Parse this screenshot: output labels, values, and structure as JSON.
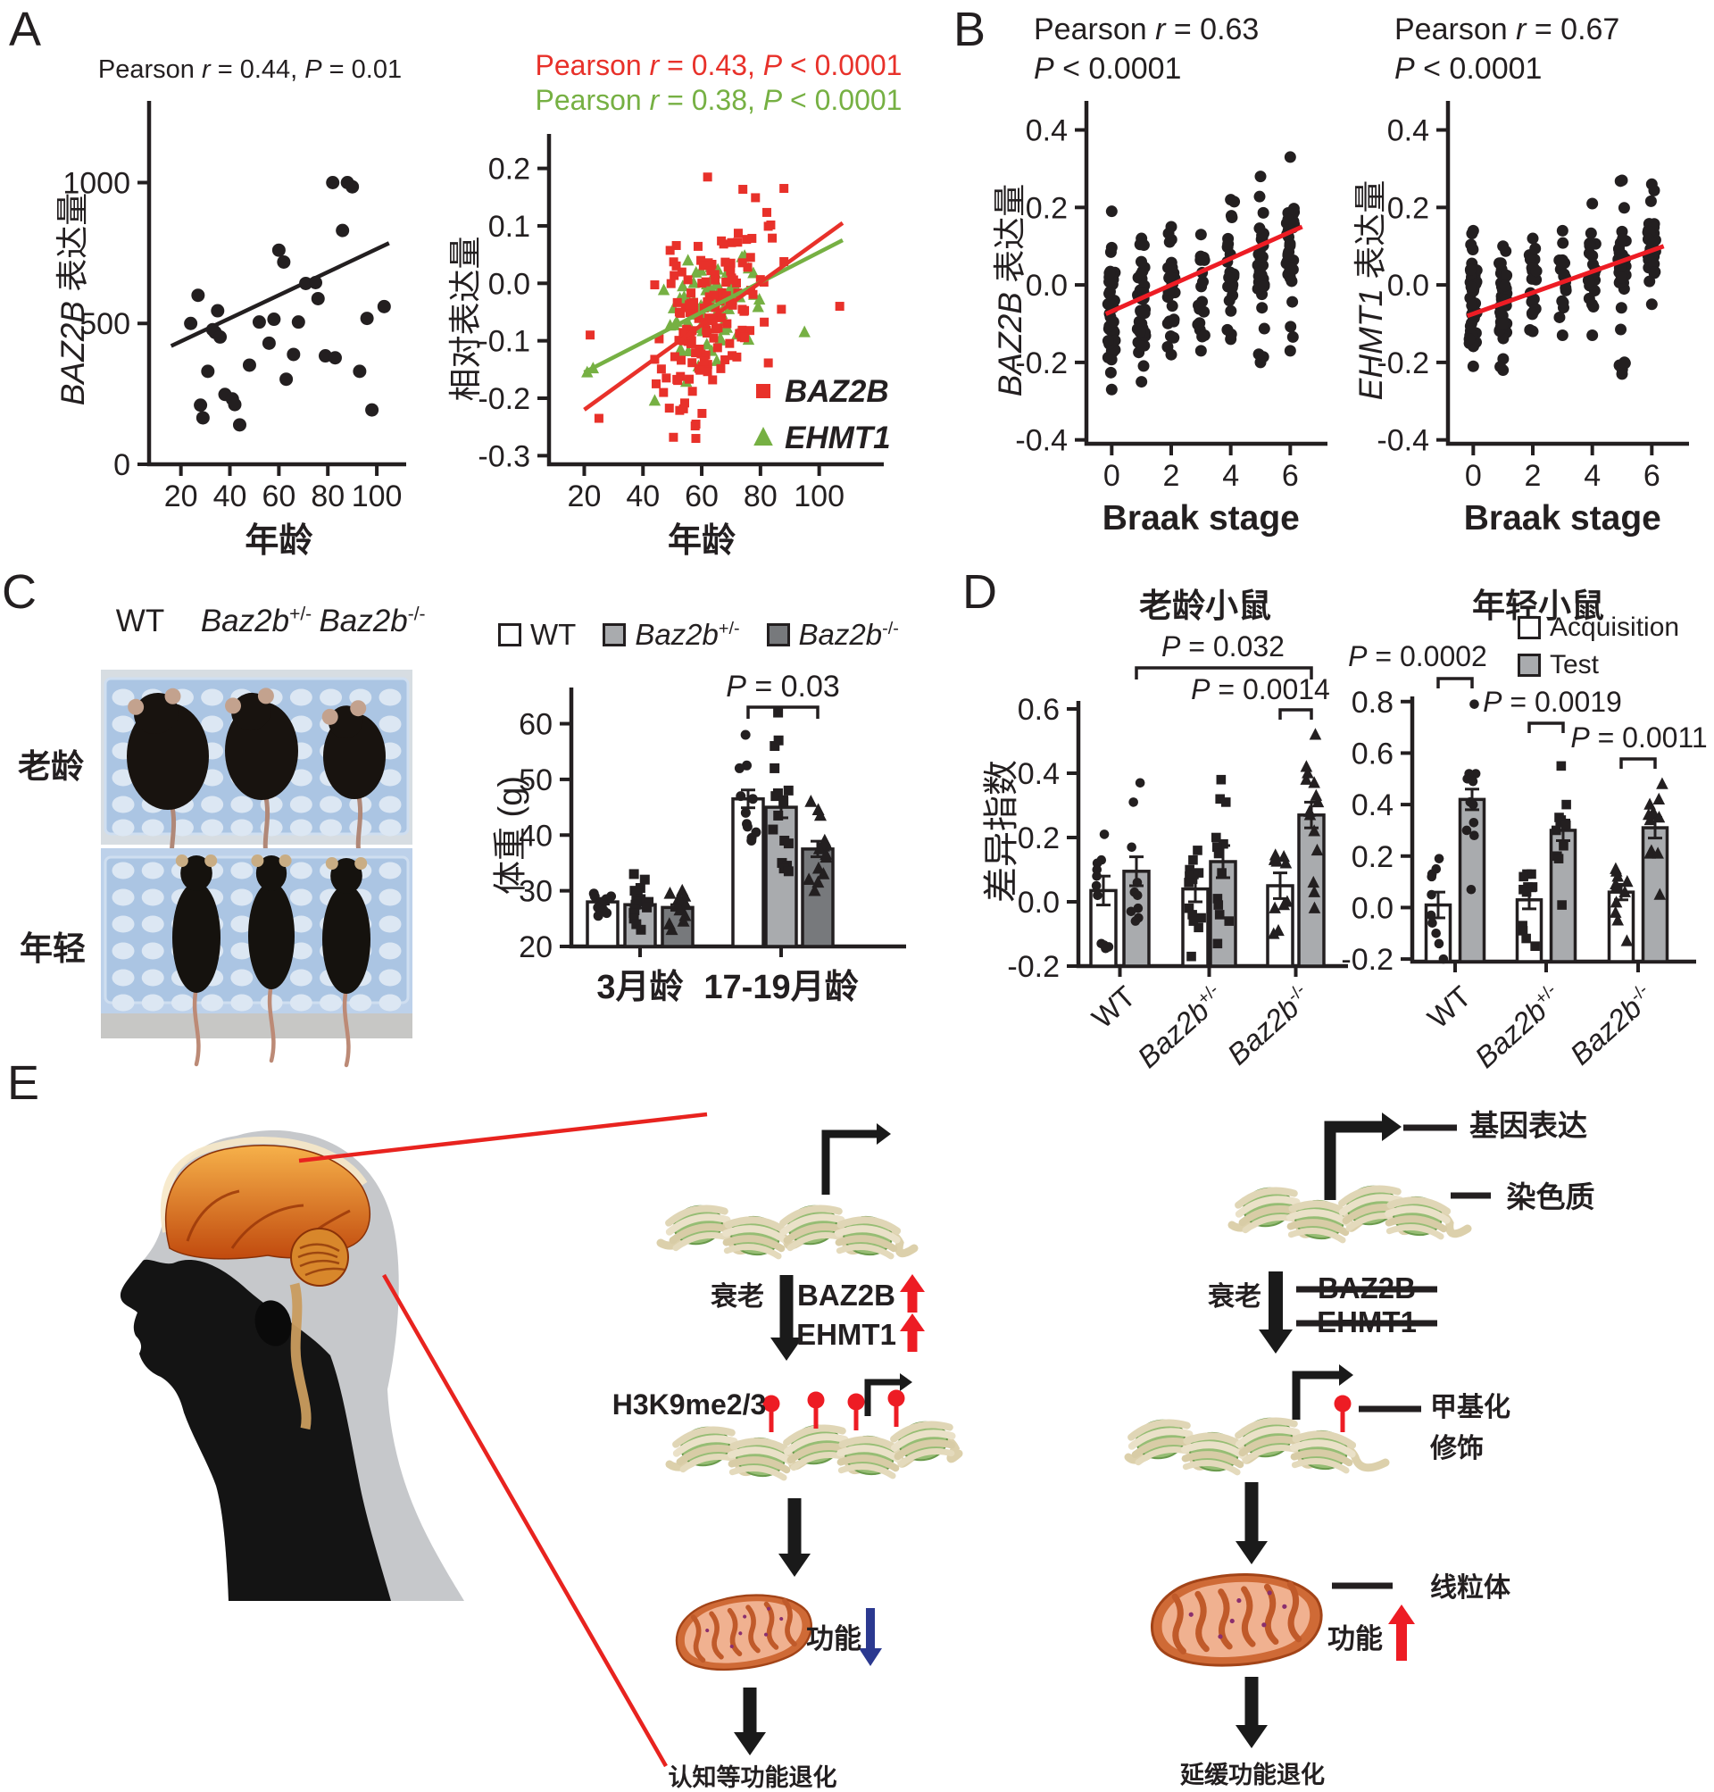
{
  "colors": {
    "ink": "#231f20",
    "red": "#e8312a",
    "line_red": "#ed1c24",
    "green": "#76b043",
    "blue": "#2b3990",
    "bar_white": "#ffffff",
    "bar_light": "#a9abae",
    "bar_dark": "#77797c"
  },
  "panel_a": {
    "label": "A",
    "left": {
      "title": "Pearson |r| = 0.44, |P| = 0.01",
      "ylabel": {
        "gene": "BAZ2B",
        "cjk": " 表达量"
      },
      "xlabel": "年龄",
      "yticks": [
        [
          0,
          "0"
        ],
        [
          500,
          "500"
        ],
        [
          1000,
          "1000"
        ]
      ],
      "xticks": [
        [
          20,
          "20"
        ],
        [
          40,
          "40"
        ],
        [
          60,
          "60"
        ],
        [
          80,
          "80"
        ],
        [
          100,
          "100"
        ]
      ],
      "points": [
        [
          24,
          500
        ],
        [
          27,
          600
        ],
        [
          28,
          210
        ],
        [
          29,
          165
        ],
        [
          31,
          330
        ],
        [
          33,
          478
        ],
        [
          34,
          468
        ],
        [
          35,
          545
        ],
        [
          36,
          452
        ],
        [
          38,
          248
        ],
        [
          41,
          232
        ],
        [
          42,
          212
        ],
        [
          44,
          140
        ],
        [
          48,
          352
        ],
        [
          52,
          505
        ],
        [
          56,
          430
        ],
        [
          58,
          515
        ],
        [
          60,
          760
        ],
        [
          62,
          718
        ],
        [
          63,
          302
        ],
        [
          66,
          390
        ],
        [
          68,
          505
        ],
        [
          71,
          642
        ],
        [
          75,
          645
        ],
        [
          76,
          588
        ],
        [
          79,
          385
        ],
        [
          82,
          1000
        ],
        [
          83,
          378
        ],
        [
          86,
          830
        ],
        [
          88,
          1000
        ],
        [
          90,
          985
        ],
        [
          93,
          330
        ],
        [
          96,
          518
        ],
        [
          98,
          193
        ],
        [
          103,
          560
        ]
      ],
      "trend": [
        [
          16,
          420
        ],
        [
          105,
          785
        ]
      ]
    },
    "right": {
      "title_red": "Pearson |r| = 0.43, |P| < 0.0001",
      "title_green": "Pearson |r| = 0.38, |P| < 0.0001",
      "ylabel": "相对表达量",
      "xlabel": "年龄",
      "yticks": [
        [
          0.2,
          "0.2"
        ],
        [
          0.1,
          "0.1"
        ],
        [
          0,
          "0.0"
        ],
        [
          -0.1,
          "-0.1"
        ],
        [
          -0.2,
          "-0.2"
        ],
        [
          -0.3,
          "-0.3"
        ]
      ],
      "xticks": [
        [
          20,
          "20"
        ],
        [
          40,
          "40"
        ],
        [
          60,
          "60"
        ],
        [
          80,
          "80"
        ],
        [
          100,
          "100"
        ]
      ],
      "legend": [
        {
          "label": "BAZ2B",
          "marker": "square",
          "color": "#e8312a"
        },
        {
          "label": "EHMT1",
          "marker": "triangle",
          "color": "#76b043"
        }
      ],
      "series": [
        {
          "name": "BAZ2B",
          "marker": "square",
          "color": "#e8312a",
          "n": 140,
          "x_center": 63,
          "x_spread": 9,
          "y_noise": 0.075,
          "trend": [
            [
              20,
              -0.22
            ],
            [
              108,
              0.105
            ]
          ],
          "outliers": [
            [
              22,
              -0.09
            ],
            [
              25,
              -0.235
            ],
            [
              47,
              -0.19
            ],
            [
              58,
              -0.27
            ],
            [
              62,
              0.185
            ],
            [
              107,
              -0.04
            ]
          ]
        },
        {
          "name": "EHMT1",
          "marker": "triangle",
          "color": "#76b043",
          "n": 80,
          "x_center": 62,
          "x_spread": 8,
          "y_noise": 0.05,
          "trend": [
            [
              20,
              -0.155
            ],
            [
              108,
              0.075
            ]
          ],
          "outliers": [
            [
              21,
              -0.155
            ],
            [
              23,
              -0.148
            ],
            [
              95,
              -0.085
            ]
          ]
        }
      ]
    }
  },
  "panel_b": {
    "label": "B",
    "left": {
      "title1": "Pearson |r| = 0.63",
      "title2": "|P| < 0.0001",
      "ylabel": {
        "gene": "BAZ2B",
        "cjk": " 表达量"
      },
      "xlabel": "Braak stage",
      "yticks": [
        [
          0.4,
          "0.4"
        ],
        [
          0.2,
          "0.2"
        ],
        [
          0,
          "0.0"
        ],
        [
          -0.2,
          "-0.2"
        ],
        [
          -0.4,
          "-0.4"
        ]
      ],
      "xticks": [
        [
          0,
          "0"
        ],
        [
          2,
          "2"
        ],
        [
          4,
          "4"
        ],
        [
          6,
          "6"
        ]
      ],
      "strips": [
        {
          "x": 0,
          "n": 38,
          "lo": -0.27,
          "hi": 0.19,
          "q1": -0.18,
          "q3": 0.04
        },
        {
          "x": 1,
          "n": 42,
          "lo": -0.25,
          "hi": 0.12,
          "q1": -0.15,
          "q3": 0.05
        },
        {
          "x": 2,
          "n": 24,
          "lo": -0.18,
          "hi": 0.15,
          "q1": -0.1,
          "q3": 0.06
        },
        {
          "x": 3,
          "n": 16,
          "lo": -0.17,
          "hi": 0.13,
          "q1": -0.14,
          "q3": 0.08
        },
        {
          "x": 4,
          "n": 20,
          "lo": -0.14,
          "hi": 0.22,
          "q1": -0.05,
          "q3": 0.1
        },
        {
          "x": 5,
          "n": 32,
          "lo": -0.2,
          "hi": 0.28,
          "q1": -0.03,
          "q3": 0.15
        },
        {
          "x": 6,
          "n": 38,
          "lo": -0.17,
          "hi": 0.33,
          "q1": 0.0,
          "q3": 0.19
        }
      ],
      "trend": [
        [
          -0.2,
          -0.075
        ],
        [
          6.4,
          0.15
        ]
      ]
    },
    "right": {
      "title1": "Pearson |r| = 0.67",
      "title2": "|P| < 0.0001",
      "ylabel": {
        "gene": "EHMT1",
        "cjk": " 表达量"
      },
      "xlabel": "Braak stage",
      "yticks": [
        [
          0.4,
          "0.4"
        ],
        [
          0.2,
          "0.2"
        ],
        [
          0,
          "0.0"
        ],
        [
          -0.2,
          "-0.2"
        ],
        [
          -0.4,
          "-0.4"
        ]
      ],
      "xticks": [
        [
          0,
          "0"
        ],
        [
          2,
          "2"
        ],
        [
          4,
          "4"
        ],
        [
          6,
          "6"
        ]
      ],
      "strips": [
        {
          "x": 0,
          "n": 44,
          "lo": -0.21,
          "hi": 0.14,
          "q1": -0.16,
          "q3": 0.02
        },
        {
          "x": 1,
          "n": 40,
          "lo": -0.22,
          "hi": 0.1,
          "q1": -0.13,
          "q3": 0.03
        },
        {
          "x": 2,
          "n": 20,
          "lo": -0.12,
          "hi": 0.12,
          "q1": -0.08,
          "q3": 0.05
        },
        {
          "x": 3,
          "n": 18,
          "lo": -0.13,
          "hi": 0.14,
          "q1": -0.06,
          "q3": 0.07
        },
        {
          "x": 4,
          "n": 26,
          "lo": -0.13,
          "hi": 0.21,
          "q1": -0.02,
          "q3": 0.11
        },
        {
          "x": 5,
          "n": 34,
          "lo": -0.23,
          "hi": 0.27,
          "q1": 0.0,
          "q3": 0.14
        },
        {
          "x": 6,
          "n": 30,
          "lo": -0.05,
          "hi": 0.26,
          "q1": 0.02,
          "q3": 0.16
        }
      ],
      "trend": [
        [
          -0.2,
          -0.08
        ],
        [
          6.4,
          0.1
        ]
      ]
    }
  },
  "panel_c": {
    "label": "C",
    "photo_cols": [
      {
        "text": "WT"
      },
      {
        "gene": "Baz2b",
        "sup": "+/-"
      },
      {
        "gene": "Baz2b",
        "sup": "-/-"
      }
    ],
    "photo_rows": [
      "老龄",
      "年轻"
    ],
    "chart": {
      "legend": [
        {
          "text": "WT",
          "fill": "#ffffff"
        },
        {
          "gene": "Baz2b",
          "sup": "+/-",
          "fill": "#a9abae"
        },
        {
          "gene": "Baz2b",
          "sup": "-/-",
          "fill": "#77797c"
        }
      ],
      "p_label": "|P| = 0.03",
      "ylabel": "体重 (g)",
      "yticks": [
        [
          20,
          "20"
        ],
        [
          30,
          "30"
        ],
        [
          40,
          "40"
        ],
        [
          50,
          "50"
        ],
        [
          60,
          "60"
        ]
      ],
      "groups": [
        {
          "name": "3月龄",
          "bars": [
            {
              "mean": 28,
              "sem": 0.4,
              "marker": "circle",
              "points": [
                29.5,
                29,
                29,
                28.5,
                28,
                28,
                27.5,
                27,
                26.5,
                26,
                25.5
              ]
            },
            {
              "mean": 27.5,
              "sem": 0.6,
              "marker": "square",
              "points": [
                33,
                32,
                30.5,
                30,
                29.5,
                29,
                28.5,
                28,
                28,
                27.5,
                27,
                26.5,
                26,
                25,
                24,
                23
              ]
            },
            {
              "mean": 27,
              "sem": 0.5,
              "marker": "triangle",
              "points": [
                30,
                29.5,
                29,
                28.5,
                28,
                28,
                27.5,
                26.5,
                25.5,
                24.5,
                24,
                23
              ]
            }
          ]
        },
        {
          "name": "17-19月龄",
          "bars": [
            {
              "mean": 46.5,
              "sem": 1.6,
              "marker": "circle",
              "points": [
                58,
                52.5,
                52,
                47,
                46.5,
                44,
                42,
                41.5,
                40.5,
                39.5,
                39
              ]
            },
            {
              "mean": 45,
              "sem": 1.9,
              "marker": "square",
              "points": [
                62,
                57,
                56,
                52,
                48,
                47.5,
                47,
                46,
                43.5,
                41,
                39,
                38.5,
                35,
                34.5,
                34,
                33.5
              ]
            },
            {
              "mean": 37.5,
              "sem": 1.4,
              "marker": "triangle",
              "points": [
                46,
                44.5,
                43.5,
                39,
                38.5,
                38,
                37.5,
                36.5,
                36,
                34,
                33,
                32,
                31.5,
                30
              ]
            }
          ]
        }
      ]
    }
  },
  "panel_d": {
    "label": "D",
    "legend": [
      {
        "text": "Acquisition",
        "fill": "#ffffff"
      },
      {
        "text": "Test",
        "fill": "#a9abae"
      }
    ],
    "ylabel": "差异指数",
    "left": {
      "title": "老龄小鼠",
      "yticks": [
        [
          0.6,
          "0.6"
        ],
        [
          0.4,
          "0.4"
        ],
        [
          0.2,
          "0.2"
        ],
        [
          0,
          "0.0"
        ],
        [
          -0.2,
          "-0.2"
        ]
      ],
      "p_labels": [
        "|P| = 0.032",
        "|P| = 0.0014"
      ],
      "groups": [
        {
          "name": {
            "text": "WT"
          },
          "marker": "circle",
          "acq": {
            "mean": 0.035,
            "sem": 0.045,
            "points": [
              0.21,
              0.13,
              0.12,
              0.1,
              0.08,
              0.05,
              0.02,
              -0.13,
              -0.135,
              -0.14,
              -0.145
            ]
          },
          "test": {
            "mean": 0.095,
            "sem": 0.045,
            "points": [
              0.37,
              0.31,
              0.17,
              0.06,
              0.03,
              0.02,
              -0.02,
              -0.03,
              -0.05,
              -0.06
            ]
          }
        },
        {
          "name": {
            "gene": "Baz2b",
            "sup": "+/-"
          },
          "marker": "square",
          "acq": {
            "mean": 0.04,
            "sem": 0.04,
            "points": [
              0.16,
              0.13,
              0.1,
              0.09,
              0.085,
              0.08,
              0.07,
              0.06,
              -0.02,
              -0.04,
              -0.05,
              -0.06,
              -0.08,
              -0.17
            ]
          },
          "test": {
            "mean": 0.125,
            "sem": 0.05,
            "points": [
              0.38,
              0.32,
              0.31,
              0.2,
              0.18,
              0.17,
              0.15,
              0.09,
              0.01,
              -0.01,
              -0.04,
              -0.06,
              -0.13
            ]
          }
        },
        {
          "name": {
            "gene": "Baz2b",
            "sup": "-/-"
          },
          "marker": "triangle",
          "acq": {
            "mean": 0.05,
            "sem": 0.04,
            "points": [
              0.145,
              0.14,
              0.135,
              0.13,
              0.125,
              0.12,
              0.0,
              -0.01,
              -0.02,
              -0.09,
              -0.1
            ]
          },
          "test": {
            "mean": 0.27,
            "sem": 0.04,
            "points": [
              0.52,
              0.42,
              0.4,
              0.38,
              0.37,
              0.33,
              0.31,
              0.28,
              0.27,
              0.22,
              0.16,
              0.06,
              0.03,
              -0.02
            ]
          }
        }
      ]
    },
    "right": {
      "title": "年轻小鼠",
      "yticks": [
        [
          0.8,
          "0.8"
        ],
        [
          0.6,
          "0.6"
        ],
        [
          0.4,
          "0.4"
        ],
        [
          0.2,
          "0.2"
        ],
        [
          0,
          "0.0"
        ],
        [
          -0.2,
          "-0.2"
        ]
      ],
      "p_labels": [
        "|P| = 0.0002",
        "|P| = 0.0019",
        "|P| = 0.0011"
      ],
      "groups": [
        {
          "name": {
            "text": "WT"
          },
          "marker": "circle",
          "acq": {
            "mean": 0.01,
            "sem": 0.05,
            "points": [
              0.19,
              0.15,
              0.13,
              0.12,
              0.05,
              -0.03,
              -0.06,
              -0.1,
              -0.14,
              -0.2
            ]
          },
          "test": {
            "mean": 0.42,
            "sem": 0.04,
            "points": [
              0.79,
              0.52,
              0.52,
              0.5,
              0.49,
              0.41,
              0.4,
              0.33,
              0.3,
              0.28,
              0.07
            ]
          }
        },
        {
          "name": {
            "gene": "Baz2b",
            "sup": "+/-"
          },
          "marker": "square",
          "acq": {
            "mean": 0.03,
            "sem": 0.035,
            "points": [
              0.13,
              0.13,
              0.12,
              0.08,
              0.08,
              0.07,
              0.06,
              -0.07,
              -0.09,
              -0.12,
              -0.15
            ]
          },
          "test": {
            "mean": 0.3,
            "sem": 0.04,
            "points": [
              0.55,
              0.4,
              0.35,
              0.34,
              0.33,
              0.32,
              0.3,
              0.24,
              0.2,
              0.19,
              0.01
            ]
          }
        },
        {
          "name": {
            "gene": "Baz2b",
            "sup": "-/-"
          },
          "marker": "triangle",
          "acq": {
            "mean": 0.06,
            "sem": 0.03,
            "points": [
              0.15,
              0.14,
              0.12,
              0.1,
              0.09,
              0.08,
              0.06,
              0.02,
              -0.02,
              -0.05,
              -0.13
            ]
          },
          "test": {
            "mean": 0.31,
            "sem": 0.04,
            "points": [
              0.48,
              0.42,
              0.4,
              0.37,
              0.36,
              0.35,
              0.34,
              0.22,
              0.21,
              0.21,
              0.05
            ]
          }
        }
      ]
    }
  },
  "panel_e": {
    "label": "E",
    "gene_expression": "基因表达",
    "chromatin": "染色质",
    "aging_left": "衰老",
    "aging_right": "衰老",
    "baz2b_up": "BAZ2B",
    "ehmt1_up": "EHMT1",
    "baz2b_ko": "BAZ2B",
    "ehmt1_ko": "EHMT1",
    "h3k9": "H3K9me2/3",
    "methylation_1": "甲基化",
    "methylation_2": "修饰",
    "mitochondria": "线粒体",
    "function_left": "功能",
    "function_right": "功能",
    "outcome_left": "认知等功能退化",
    "outcome_right": "延缓功能退化"
  }
}
